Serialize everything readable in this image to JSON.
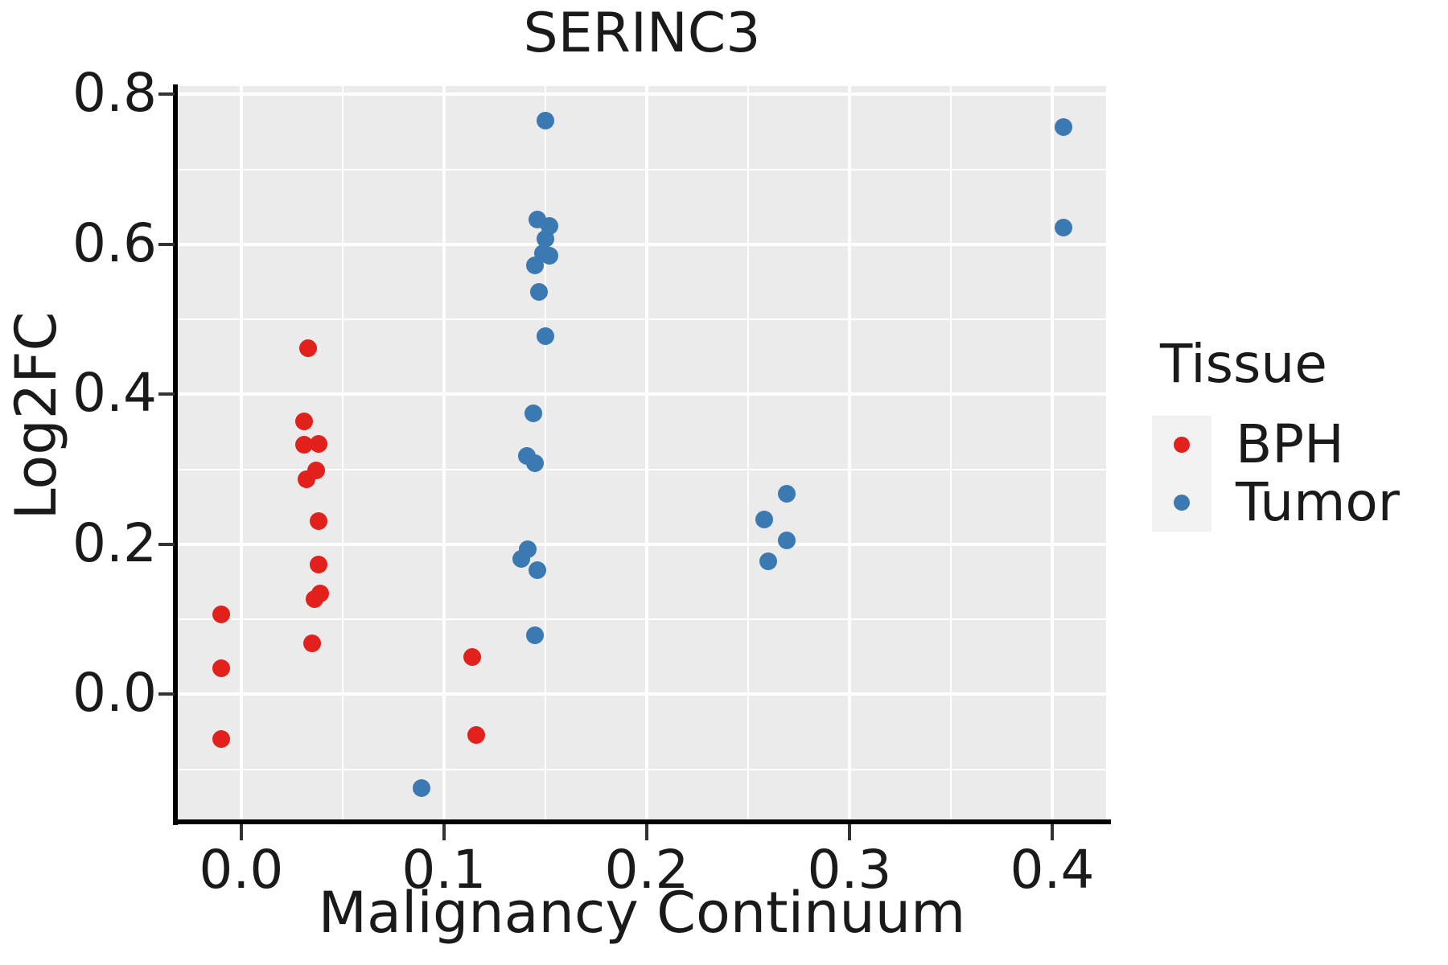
{
  "chart_data": {
    "type": "scatter",
    "title": "SERINC3",
    "xlabel": "Malignancy Continuum",
    "ylabel": "Log2FC",
    "x_domain": [
      -0.0313,
      0.4266
    ],
    "y_domain": [
      -0.168,
      0.811
    ],
    "x_ticks": {
      "values": [
        0.0,
        0.1,
        0.2,
        0.3,
        0.4
      ],
      "labels": [
        "0.0",
        "0.1",
        "0.2",
        "0.3",
        "0.4"
      ]
    },
    "y_ticks": {
      "values": [
        0.0,
        0.2,
        0.4,
        0.6,
        0.8
      ],
      "labels": [
        "0.0",
        "0.2",
        "0.4",
        "0.6",
        "0.8"
      ]
    },
    "x_minor_ticks": [
      0.05,
      0.15,
      0.25,
      0.35
    ],
    "y_minor_ticks": [
      -0.1,
      0.1,
      0.3,
      0.5,
      0.7
    ],
    "grid": "white major and minor gridlines on gray panel",
    "legend": {
      "title": "Tissue",
      "position": "right"
    },
    "series": [
      {
        "name": "BPH",
        "color": "#e3211c",
        "points": [
          [
            -0.01,
            0.107
          ],
          [
            -0.01,
            0.035
          ],
          [
            -0.01,
            -0.06
          ],
          [
            0.033,
            0.461
          ],
          [
            0.031,
            0.364
          ],
          [
            0.031,
            0.333
          ],
          [
            0.038,
            0.334
          ],
          [
            0.032,
            0.287
          ],
          [
            0.037,
            0.298
          ],
          [
            0.038,
            0.231
          ],
          [
            0.038,
            0.173
          ],
          [
            0.039,
            0.134
          ],
          [
            0.036,
            0.127
          ],
          [
            0.035,
            0.068
          ],
          [
            0.114,
            0.05
          ],
          [
            0.116,
            -0.054
          ]
        ]
      },
      {
        "name": "Tumor",
        "color": "#3a79b1",
        "points": [
          [
            0.089,
            -0.125
          ],
          [
            0.15,
            0.765
          ],
          [
            0.146,
            0.633
          ],
          [
            0.152,
            0.624
          ],
          [
            0.15,
            0.607
          ],
          [
            0.149,
            0.588
          ],
          [
            0.152,
            0.585
          ],
          [
            0.145,
            0.572
          ],
          [
            0.147,
            0.536
          ],
          [
            0.15,
            0.477
          ],
          [
            0.144,
            0.375
          ],
          [
            0.141,
            0.318
          ],
          [
            0.145,
            0.308
          ],
          [
            0.1415,
            0.193
          ],
          [
            0.138,
            0.18
          ],
          [
            0.146,
            0.165
          ],
          [
            0.145,
            0.079
          ],
          [
            0.258,
            0.233
          ],
          [
            0.269,
            0.267
          ],
          [
            0.269,
            0.205
          ],
          [
            0.26,
            0.177
          ],
          [
            0.4055,
            0.756
          ],
          [
            0.4055,
            0.622
          ]
        ]
      }
    ],
    "colors": {
      "panel_background": "#ebebeb",
      "gridline": "#ffffff",
      "spine": "#000000",
      "tick_mark": "#333333",
      "text": "#1a1a1a",
      "legend_key_background": "#f2f2f2",
      "bph": "#e3211c",
      "tumor": "#3a79b1"
    }
  }
}
